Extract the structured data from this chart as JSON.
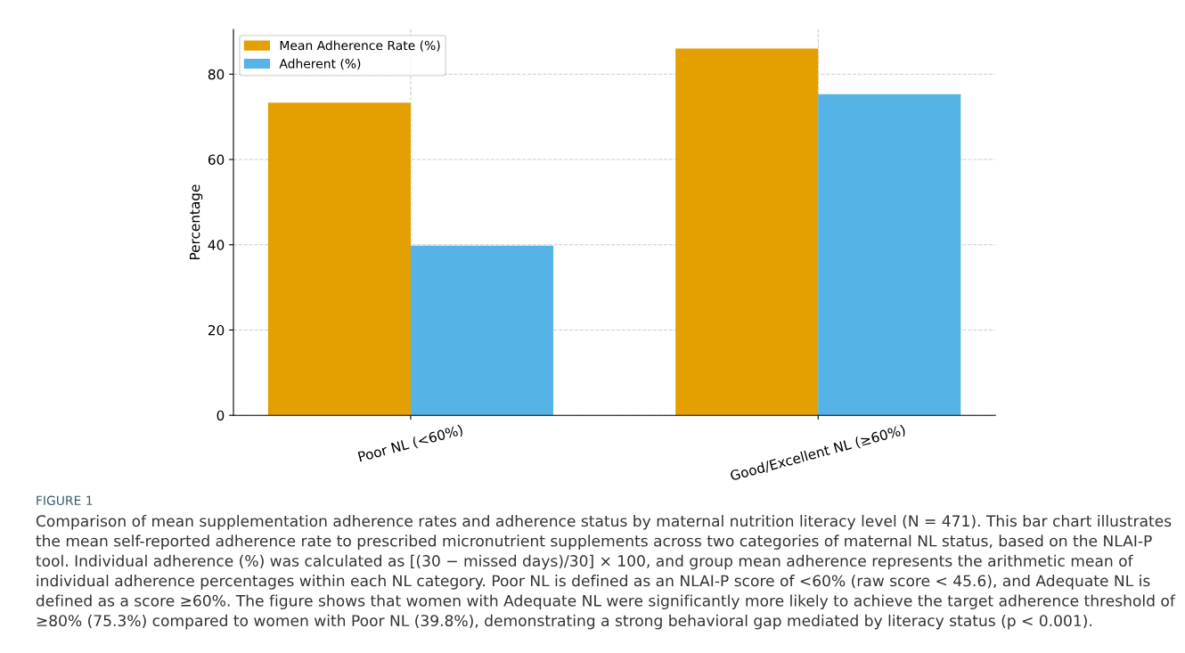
{
  "chart_data": {
    "type": "bar",
    "ylabel": "Percentage",
    "categories": [
      "Poor NL (<60%)",
      "Good/Excellent NL (≥60%)"
    ],
    "series": [
      {
        "name": "Mean Adherence Rate (%)",
        "color": "#e49f00",
        "values": [
          73.3,
          86.0
        ]
      },
      {
        "name": "Adherent (%)",
        "color": "#56b3e6",
        "values": [
          39.8,
          75.3
        ]
      }
    ],
    "ylim": [
      0,
      90.5
    ],
    "yticks": [
      0,
      20,
      40,
      60,
      80
    ],
    "grid": true,
    "legend": "top left",
    "annotations": [
      "FIGURE 1",
      "Comparison of mean supplementation adherence rates and adherence status by maternal nutrition literacy level (N = 471). This bar chart illustrates the mean self-reported adherence rate to prescribed micronutrient supplements across two categories of maternal NL status, based on the NLAI-P tool. Individual adherence (%) was calculated as [(30 − missed days)/30] × 100, and group mean adherence represents the arithmetic mean of individual adherence percentages within each NL category. Poor NL is defined as an NLAI-P score of <60% (raw score < 45.6), and Adequate NL is defined as a score ≥60%. The figure shows that women with Adequate NL were significantly more likely to achieve the target adherence threshold of ≥80% (75.3%) compared to women with Poor NL (39.8%), demonstrating a strong behavioral gap mediated by literacy status (p < 0.001)."
    ]
  }
}
